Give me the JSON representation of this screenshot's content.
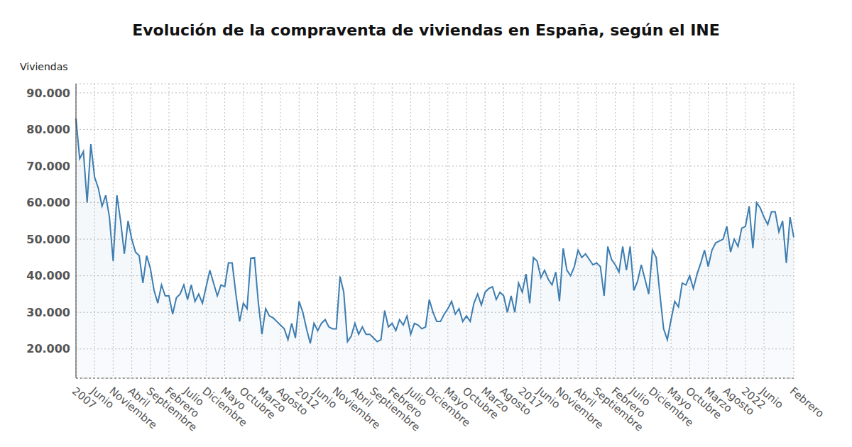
{
  "chart_data": {
    "type": "line",
    "title": "Evolución de la compraventa de viviendas en España, según el INE",
    "y_label": "Viviendas",
    "color": "#3d7db0",
    "grid": true,
    "ylim": [
      12000,
      92500
    ],
    "yticks": [
      {
        "value": 20000,
        "label": "20.000"
      },
      {
        "value": 30000,
        "label": "30.000"
      },
      {
        "value": 40000,
        "label": "40.000"
      },
      {
        "value": 50000,
        "label": "50.000"
      },
      {
        "value": 60000,
        "label": "60.000"
      },
      {
        "value": 70000,
        "label": "70.000"
      },
      {
        "value": 80000,
        "label": "80.000"
      },
      {
        "value": 90000,
        "label": "90.000"
      }
    ],
    "categories": [
      "2007",
      null,
      null,
      null,
      null,
      "Junio",
      null,
      null,
      null,
      null,
      "Noviembre",
      null,
      null,
      null,
      null,
      "Abril",
      null,
      null,
      null,
      null,
      "Septiembre",
      null,
      null,
      null,
      null,
      "Febrero",
      null,
      null,
      null,
      null,
      "Julio",
      null,
      null,
      null,
      null,
      "Diciembre",
      null,
      null,
      null,
      null,
      "Mayo",
      null,
      null,
      null,
      null,
      "Octubre",
      null,
      null,
      null,
      null,
      "Marzo",
      null,
      null,
      null,
      null,
      "Agosto",
      null,
      null,
      null,
      null,
      "2012",
      null,
      null,
      null,
      null,
      "Junio",
      null,
      null,
      null,
      null,
      "Noviembre",
      null,
      null,
      null,
      null,
      "Abril",
      null,
      null,
      null,
      null,
      "Septiembre",
      null,
      null,
      null,
      null,
      "Febrero",
      null,
      null,
      null,
      null,
      "Julio",
      null,
      null,
      null,
      null,
      "Diciembre",
      null,
      null,
      null,
      null,
      "Mayo",
      null,
      null,
      null,
      null,
      "Octubre",
      null,
      null,
      null,
      null,
      "Marzo",
      null,
      null,
      null,
      null,
      "Agosto",
      null,
      null,
      null,
      null,
      "2017",
      null,
      null,
      null,
      null,
      "Junio",
      null,
      null,
      null,
      null,
      "Noviembre",
      null,
      null,
      null,
      null,
      "Abril",
      null,
      null,
      null,
      null,
      "Septiembre",
      null,
      null,
      null,
      null,
      "Febrero",
      null,
      null,
      null,
      null,
      "Julio",
      null,
      null,
      null,
      null,
      "Diciembre",
      null,
      null,
      null,
      null,
      "Mayo",
      null,
      null,
      null,
      null,
      "Octubre",
      null,
      null,
      null,
      null,
      "Marzo",
      null,
      null,
      null,
      null,
      "Agosto",
      null,
      null,
      null,
      null,
      "2022",
      null,
      null,
      null,
      null,
      "Junio",
      null,
      null,
      null,
      null,
      null,
      null,
      null,
      "Febrero"
    ],
    "values": [
      83000,
      72000,
      74000,
      60000,
      76000,
      67000,
      64000,
      59000,
      62000,
      56000,
      44000,
      62000,
      55000,
      46000,
      55000,
      50000,
      46500,
      45500,
      38000,
      45500,
      42000,
      36000,
      32500,
      37500,
      34500,
      34500,
      29500,
      34000,
      35000,
      37500,
      33500,
      37500,
      33000,
      35000,
      32500,
      37000,
      41500,
      38000,
      34500,
      37500,
      37000,
      43500,
      43500,
      35000,
      27500,
      32500,
      31000,
      44800,
      45000,
      33000,
      24000,
      31000,
      29000,
      28500,
      27500,
      26500,
      25500,
      22500,
      27000,
      23000,
      33000,
      30000,
      25500,
      21500,
      27000,
      25000,
      27000,
      28000,
      26000,
      25500,
      25500,
      39800,
      35500,
      22000,
      23500,
      27000,
      24000,
      26000,
      24000,
      24000,
      23000,
      22000,
      22500,
      30500,
      26000,
      27000,
      25000,
      28000,
      26500,
      29000,
      24000,
      27000,
      26500,
      25500,
      26000,
      33500,
      30000,
      27500,
      27500,
      29500,
      31000,
      33000,
      29500,
      31000,
      27500,
      29000,
      27500,
      32500,
      35000,
      32000,
      35500,
      36500,
      37000,
      33500,
      35500,
      34500,
      30000,
      34500,
      30000,
      38000,
      35500,
      40500,
      32500,
      45000,
      44000,
      39500,
      41500,
      39000,
      37500,
      41000,
      33000,
      47500,
      41500,
      40000,
      42500,
      47000,
      45000,
      46000,
      44500,
      43000,
      43500,
      42500,
      34500,
      48000,
      44500,
      43000,
      41000,
      48000,
      41500,
      48000,
      36000,
      38500,
      43000,
      39000,
      35000,
      47000,
      45000,
      35000,
      25500,
      22500,
      28000,
      33000,
      31500,
      38000,
      37500,
      40000,
      36500,
      40500,
      43500,
      47000,
      42500,
      47000,
      49000,
      49500,
      50000,
      53500,
      46500,
      50000,
      48000,
      53000,
      53500,
      59000,
      47500,
      60000,
      58500,
      56000,
      54000,
      57500,
      57500,
      52000,
      55000,
      43500,
      56000,
      50500
    ]
  }
}
